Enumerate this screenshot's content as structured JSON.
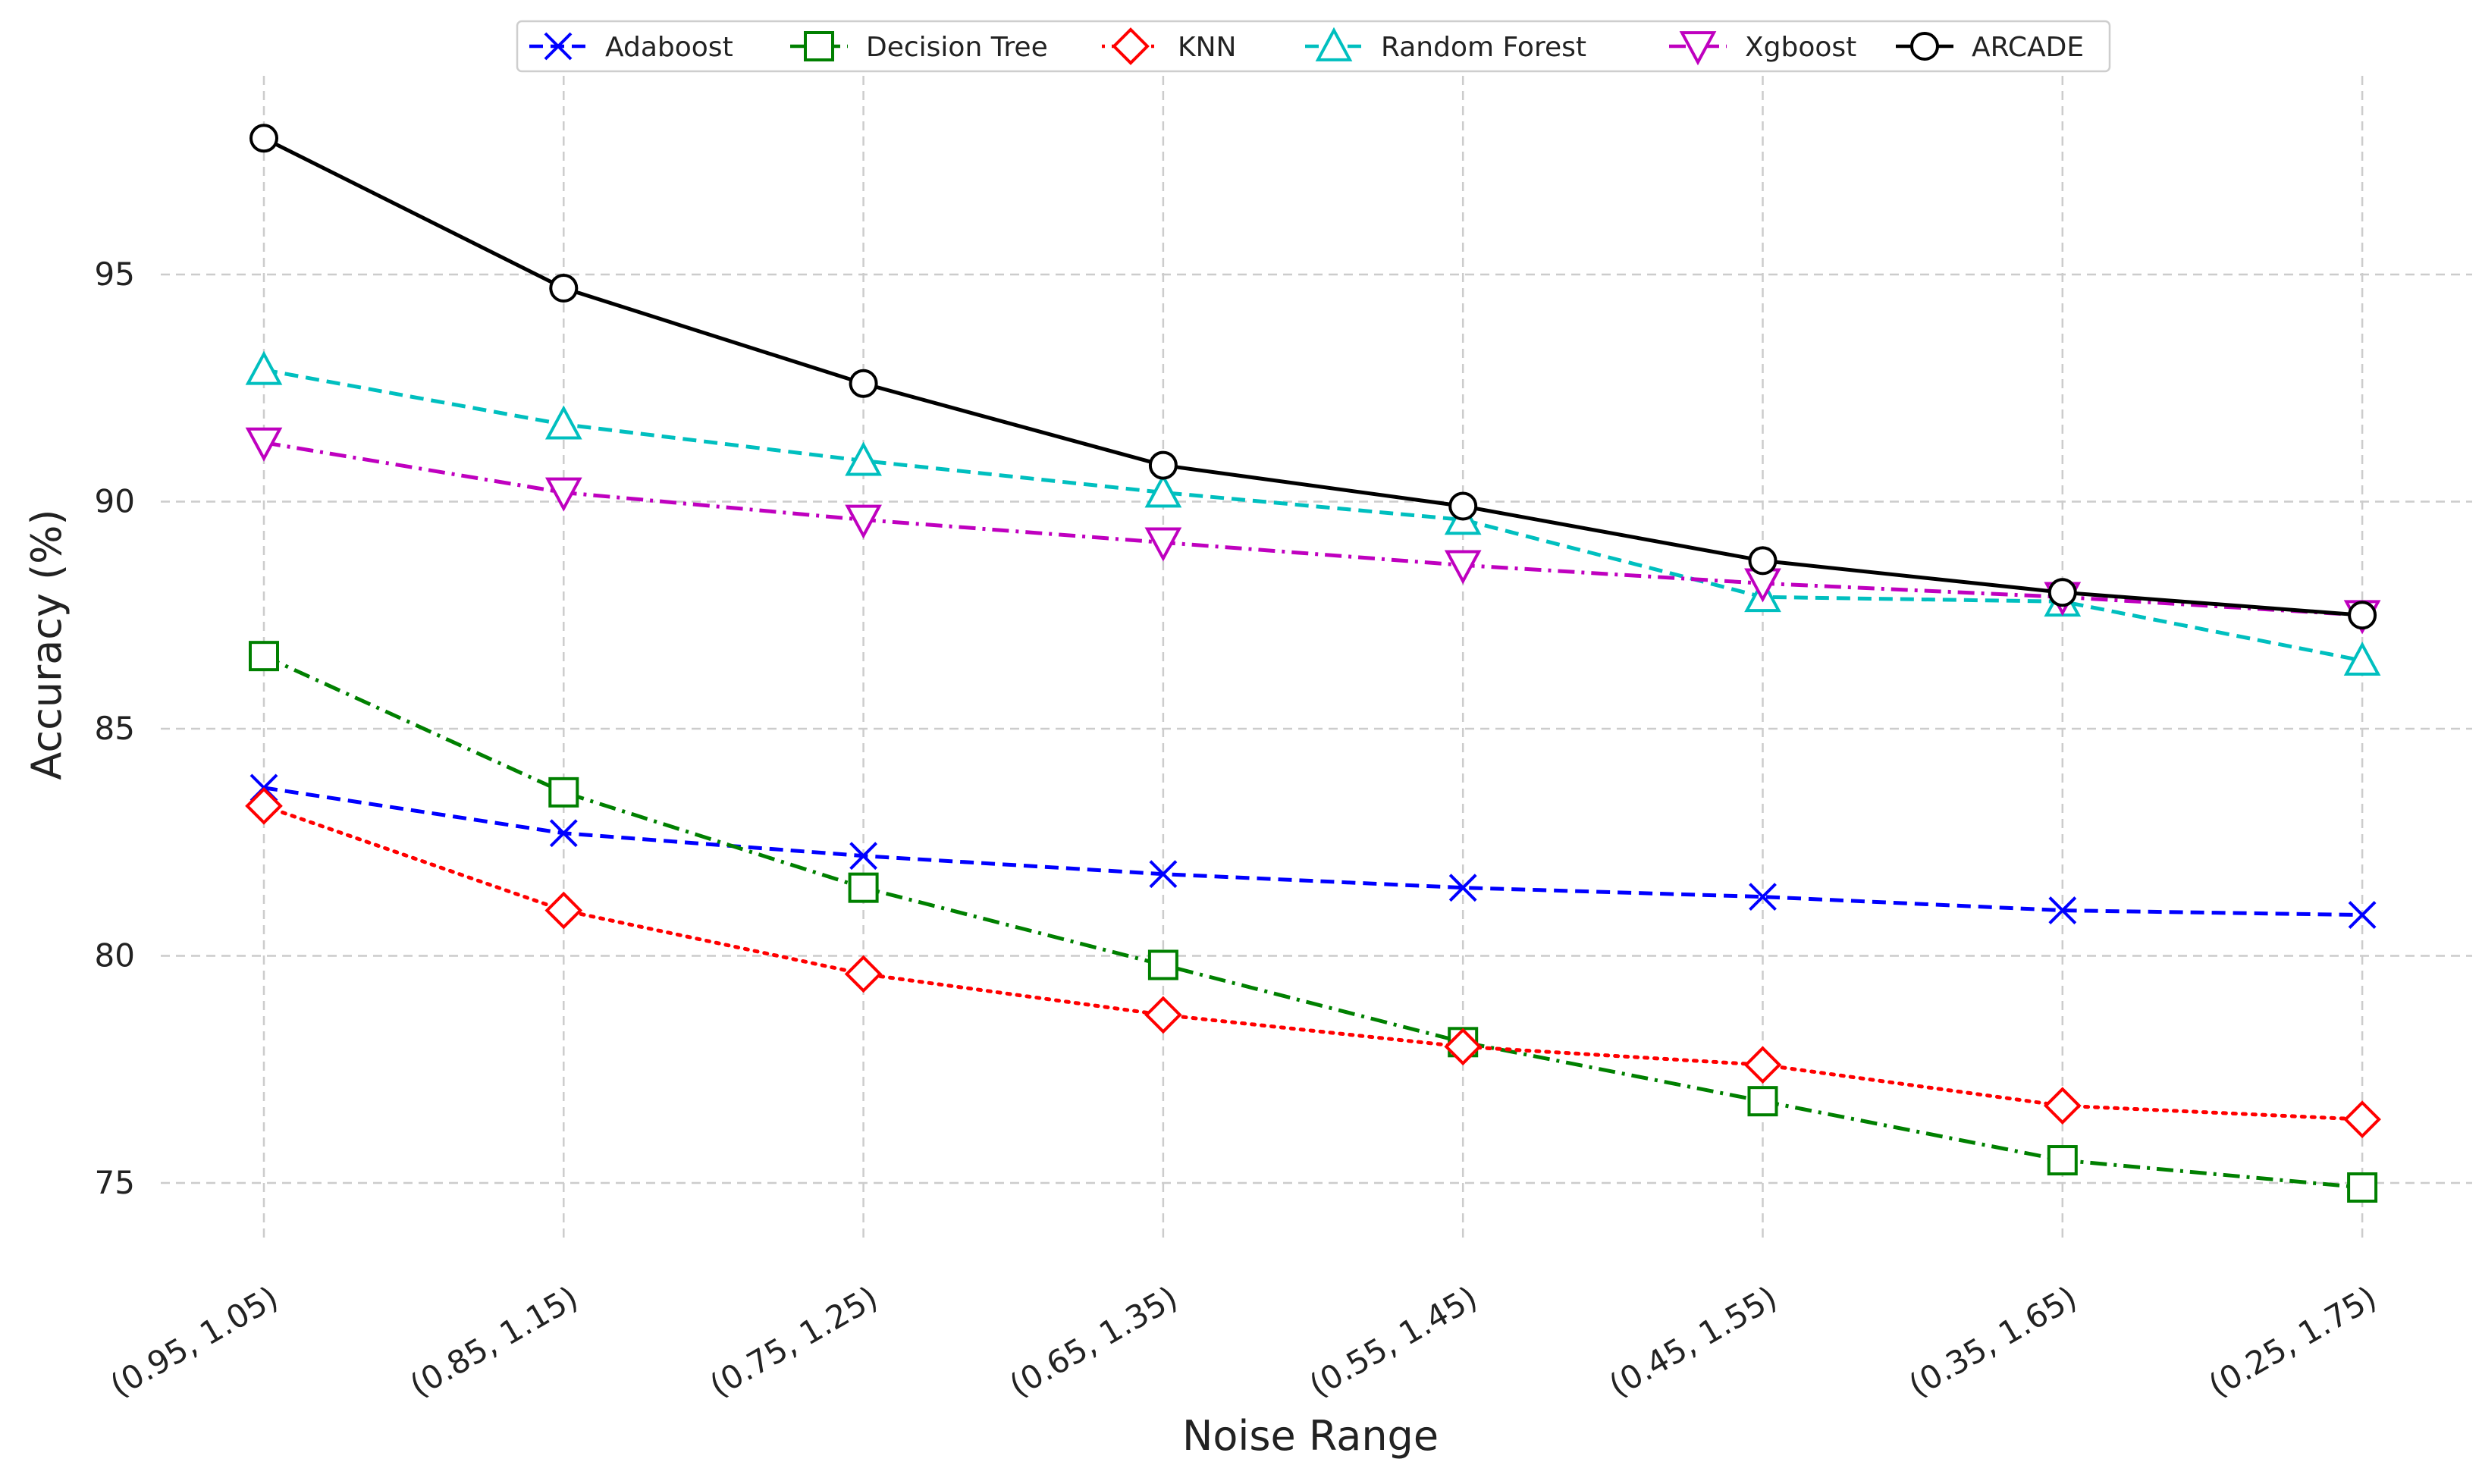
{
  "chart_data": {
    "type": "line",
    "title": "",
    "xlabel": "Noise Range",
    "ylabel": "Accuracy (%)",
    "categories": [
      "(0.95, 1.05)",
      "(0.85, 1.15)",
      "(0.75, 1.25)",
      "(0.65, 1.35)",
      "(0.55, 1.45)",
      "(0.45, 1.55)",
      "(0.35, 1.65)",
      "(0.25, 1.75)"
    ],
    "ylim": [
      73.8,
      100.2
    ],
    "yticks": [
      75,
      80,
      85,
      90,
      95
    ],
    "grid": true,
    "legend_position": "top-center",
    "series": [
      {
        "name": "Adaboost",
        "color": "#0000ff",
        "marker": "x",
        "dash": "dashed",
        "values": [
          83.7,
          82.7,
          82.2,
          81.8,
          81.5,
          81.3,
          81.0,
          80.9
        ]
      },
      {
        "name": "Decision Tree",
        "color": "#008000",
        "marker": "square",
        "dash": "dashdot",
        "values": [
          86.6,
          83.6,
          81.5,
          79.8,
          78.1,
          76.8,
          75.5,
          74.9
        ]
      },
      {
        "name": "KNN",
        "color": "#ff0000",
        "marker": "diamond",
        "dash": "dotted",
        "values": [
          83.3,
          81.0,
          79.6,
          78.7,
          78.0,
          77.6,
          76.7,
          76.4
        ]
      },
      {
        "name": "Random Forest",
        "color": "#00bfbf",
        "marker": "triangle-up",
        "dash": "dashed",
        "values": [
          92.9,
          91.7,
          90.9,
          90.2,
          89.6,
          87.9,
          87.8,
          86.5
        ]
      },
      {
        "name": "Xgboost",
        "color": "#bf00bf",
        "marker": "triangle-down",
        "dash": "dashdot",
        "values": [
          91.3,
          90.2,
          89.6,
          89.1,
          88.6,
          88.2,
          87.9,
          87.5
        ]
      },
      {
        "name": "ARCADE",
        "color": "#000000",
        "marker": "circle",
        "dash": "solid",
        "values": [
          98.0,
          94.7,
          92.6,
          90.8,
          89.9,
          88.7,
          88.0,
          87.5
        ]
      }
    ]
  }
}
